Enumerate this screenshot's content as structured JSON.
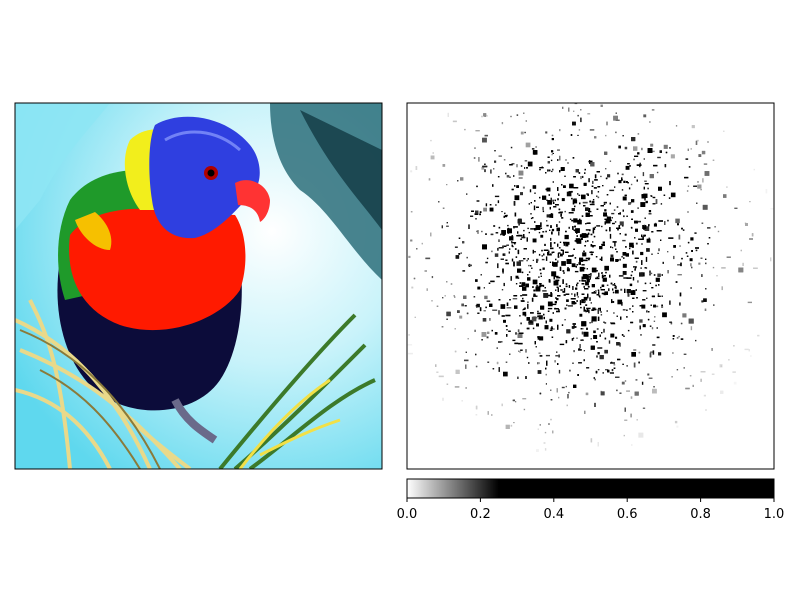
{
  "chart_data": [
    {
      "type": "image",
      "title": "",
      "subject": "rainbow lorikeet perched on dry grass stems",
      "axes": {
        "xticks": [],
        "yticks": []
      },
      "colors": {
        "sky": "#7fe6f5",
        "sky_light": "#dff7fb",
        "blue_head": "#2f3fe0",
        "yellow_band": "#f2ee1c",
        "green_nape": "#1f9a2a",
        "red_chest": "#ff1a00",
        "dark_belly": "#0c0c3a",
        "beak": "#ff3333",
        "straw": "#e9d98a"
      }
    },
    {
      "type": "heatmap",
      "title": "",
      "description": "grayscale saliency map, dark points concentrated in the center",
      "colormap": "gray_r",
      "axes": {
        "xticks": [],
        "yticks": []
      },
      "colorbar": {
        "orientation": "horizontal",
        "range": [
          0.0,
          1.0
        ],
        "ticks": [
          0.0,
          0.2,
          0.4,
          0.6,
          0.8,
          1.0
        ],
        "tick_labels": [
          "0.0",
          "0.2",
          "0.4",
          "0.6",
          "0.8",
          "1.0"
        ],
        "saturation_value": 0.25
      }
    }
  ]
}
